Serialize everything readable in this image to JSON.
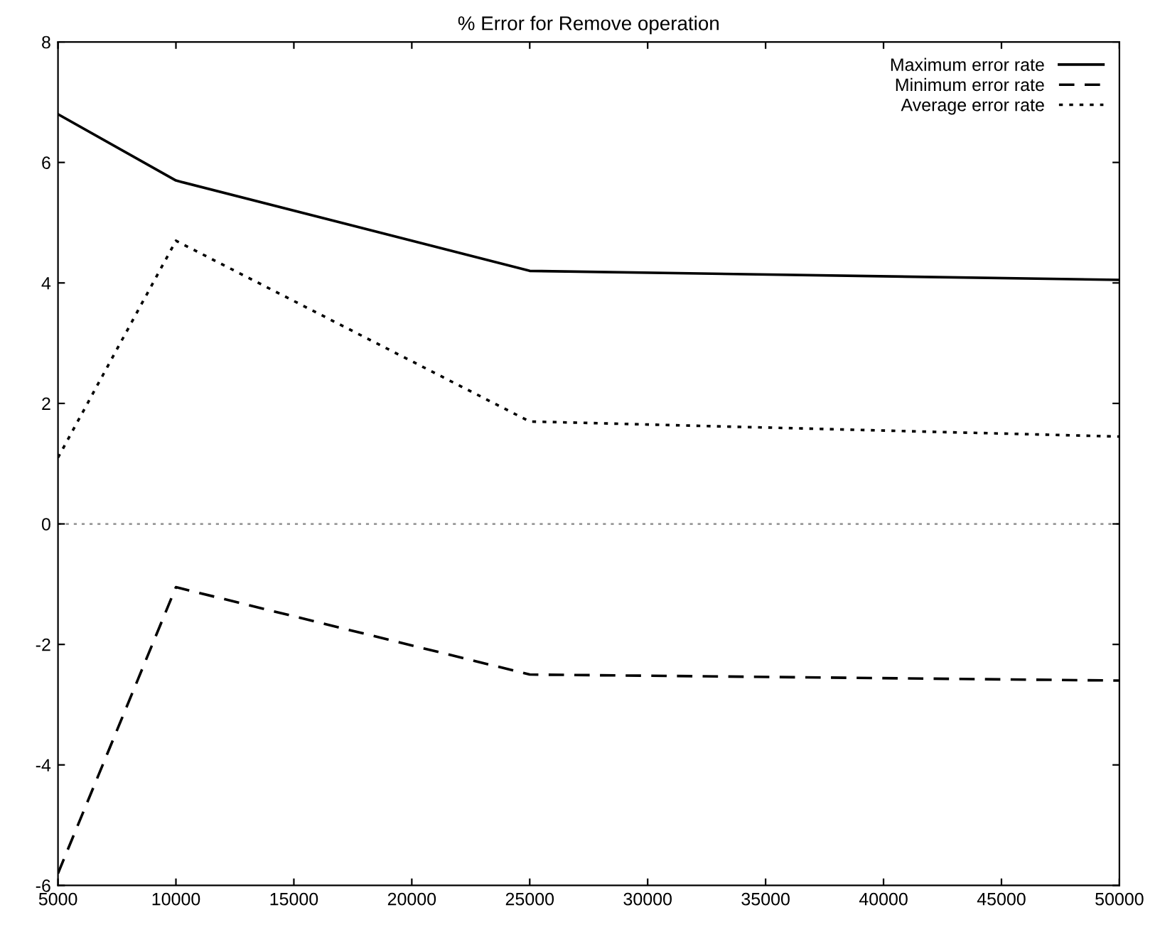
{
  "chart_data": {
    "type": "line",
    "title": "% Error for Remove operation",
    "x": [
      5000,
      10000,
      25000,
      50000
    ],
    "series": [
      {
        "name": "Maximum error rate",
        "color": "#000000",
        "line_style": "solid",
        "values": [
          6.8,
          5.7,
          4.2,
          4.05
        ]
      },
      {
        "name": "Minimum error rate",
        "color": "#000000",
        "line_style": "dashed",
        "values": [
          -5.8,
          -1.05,
          -2.5,
          -2.6
        ]
      },
      {
        "name": "Average error rate",
        "color": "#000000",
        "line_style": "dotted",
        "values": [
          1.1,
          4.7,
          1.7,
          1.45
        ]
      }
    ],
    "xlim": [
      5000,
      50000
    ],
    "ylim": [
      -6,
      8
    ],
    "xticks": [
      5000,
      10000,
      15000,
      20000,
      25000,
      30000,
      35000,
      40000,
      45000,
      50000
    ],
    "yticks": [
      -6,
      -4,
      -2,
      0,
      2,
      4,
      6,
      8
    ],
    "ref_lines": [
      {
        "axis": "y",
        "value": 0,
        "color": "#999999",
        "line_style": "dotted"
      }
    ],
    "grid": false,
    "legend": "top right",
    "marker": "none"
  }
}
